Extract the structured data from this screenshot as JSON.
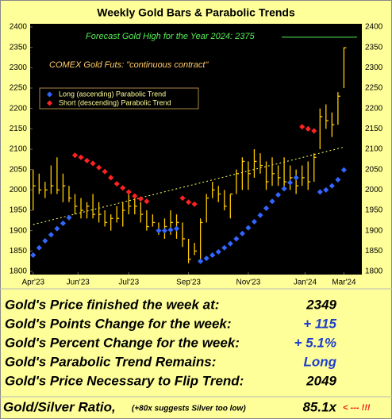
{
  "chart_data": {
    "type": "ohlc",
    "title": "Weekly Gold Bars & Parabolic Trends",
    "forecast_label": "Forecast Gold High for the Year 2024:  2375",
    "forecast_value": 2375,
    "forecast_color": "#55ee55",
    "contract_label": "COMEX Gold Futs:  \"continuous contract\"",
    "bars": {
      "color": "#ffcc00",
      "high": [
        2050,
        2040,
        2020,
        2060,
        2080,
        2040,
        2010,
        1990,
        1980,
        1970,
        1990,
        1970,
        1950,
        1940,
        1960,
        1970,
        1990,
        1980,
        1970,
        1950,
        1940,
        1920,
        1930,
        1950,
        1940,
        1920,
        1880,
        1870,
        1930,
        1990,
        2020,
        2010,
        2000,
        1990,
        2050,
        2080,
        2070,
        2100,
        2090,
        2070,
        2080,
        2060,
        2080,
        2060,
        2050,
        2060,
        2070,
        2090,
        2200,
        2210,
        2190,
        2240,
        2350
      ],
      "low": [
        1950,
        1990,
        1980,
        1990,
        1990,
        1970,
        1970,
        1940,
        1930,
        1930,
        1930,
        1920,
        1910,
        1900,
        1920,
        1910,
        1940,
        1940,
        1920,
        1900,
        1910,
        1890,
        1880,
        1890,
        1880,
        1860,
        1820,
        1840,
        1830,
        1920,
        1980,
        1970,
        1950,
        1930,
        1990,
        2000,
        2000,
        2030,
        2040,
        2000,
        2010,
        2010,
        2000,
        2000,
        1990,
        2010,
        2000,
        2020,
        2100,
        2150,
        2130,
        2160,
        2250
      ],
      "close": [
        2010,
        2000,
        2000,
        2010,
        2000,
        2010,
        1980,
        1960,
        1950,
        1960,
        1940,
        1940,
        1920,
        1930,
        1930,
        1950,
        1960,
        1960,
        1940,
        1910,
        1920,
        1900,
        1910,
        1920,
        1920,
        1880,
        1830,
        1850,
        1920,
        1980,
        2000,
        1990,
        1960,
        1990,
        2040,
        2070,
        2040,
        2070,
        2060,
        2020,
        2040,
        2030,
        2020,
        2030,
        2010,
        2030,
        2020,
        2080,
        2180,
        2170,
        2160,
        2230,
        2349
      ]
    },
    "series": [
      {
        "name": "Long (ascending) Parabolic Trend",
        "color": "#3366ff",
        "values": [
          1840,
          1858,
          1875,
          1890,
          1905,
          1918,
          1932,
          null,
          null,
          null,
          null,
          null,
          null,
          null,
          null,
          null,
          null,
          null,
          null,
          null,
          null,
          1900,
          1900,
          1902,
          1905,
          null,
          null,
          null,
          1825,
          1832,
          1840,
          1848,
          1858,
          1868,
          1880,
          1893,
          1907,
          1922,
          1938,
          1955,
          1972,
          1988,
          2003,
          2018,
          2030,
          null,
          null,
          null,
          1995,
          2000,
          2010,
          2025,
          2049
        ]
      },
      {
        "name": "Short (descending) Parabolic Trend",
        "color": "#ff2222",
        "values": [
          null,
          null,
          null,
          null,
          null,
          null,
          null,
          2085,
          2080,
          2072,
          2065,
          2055,
          2045,
          2030,
          2015,
          2005,
          1995,
          1985,
          1978,
          1972,
          null,
          null,
          null,
          null,
          null,
          1980,
          1970,
          1965,
          null,
          null,
          null,
          null,
          null,
          null,
          null,
          null,
          null,
          null,
          null,
          null,
          null,
          null,
          null,
          null,
          null,
          2155,
          2150,
          2145,
          null,
          null,
          null,
          null,
          null
        ]
      }
    ],
    "trend_line": {
      "x": [
        0,
        52
      ],
      "values": [
        1915,
        2105
      ],
      "color": "#ffff66"
    },
    "ylim": [
      1800,
      2400
    ],
    "yticks": [
      1800,
      1850,
      1900,
      1950,
      2000,
      2050,
      2100,
      2150,
      2200,
      2250,
      2300,
      2350,
      2400
    ],
    "xlim": [
      -0.5,
      55
    ],
    "xticks": [
      {
        "value": 0,
        "label": "Apr'23"
      },
      {
        "value": 7.5,
        "label": "Jun'23"
      },
      {
        "value": 16,
        "label": "Jul'23"
      },
      {
        "value": 26,
        "label": "Sep'23"
      },
      {
        "value": 36,
        "label": "Nov'23"
      },
      {
        "value": 45.5,
        "label": "Jan'24"
      },
      {
        "value": 52,
        "label": "Mar'24"
      }
    ]
  },
  "summary": {
    "rows": [
      {
        "label": "Gold's Price finished the week at:",
        "value": "2349",
        "color": "#000000"
      },
      {
        "label": "Gold's Points Change for the week:",
        "value": "+ 115",
        "color": "#1f3fcc"
      },
      {
        "label": "Gold's Percent Change for the week:",
        "value": "+ 5.1%",
        "color": "#1f3fcc"
      },
      {
        "label": "Gold's Parabolic Trend Remains:",
        "value": "Long",
        "color": "#1f3fcc"
      },
      {
        "label": "Gold's Price Necessary to Flip Trend:",
        "value": "2049",
        "color": "#000000"
      }
    ],
    "ratio": {
      "label": "Gold/Silver Ratio,",
      "note": "(+80x suggests Silver too low)",
      "value": "85.1x",
      "flag": "< --- !!!"
    }
  }
}
